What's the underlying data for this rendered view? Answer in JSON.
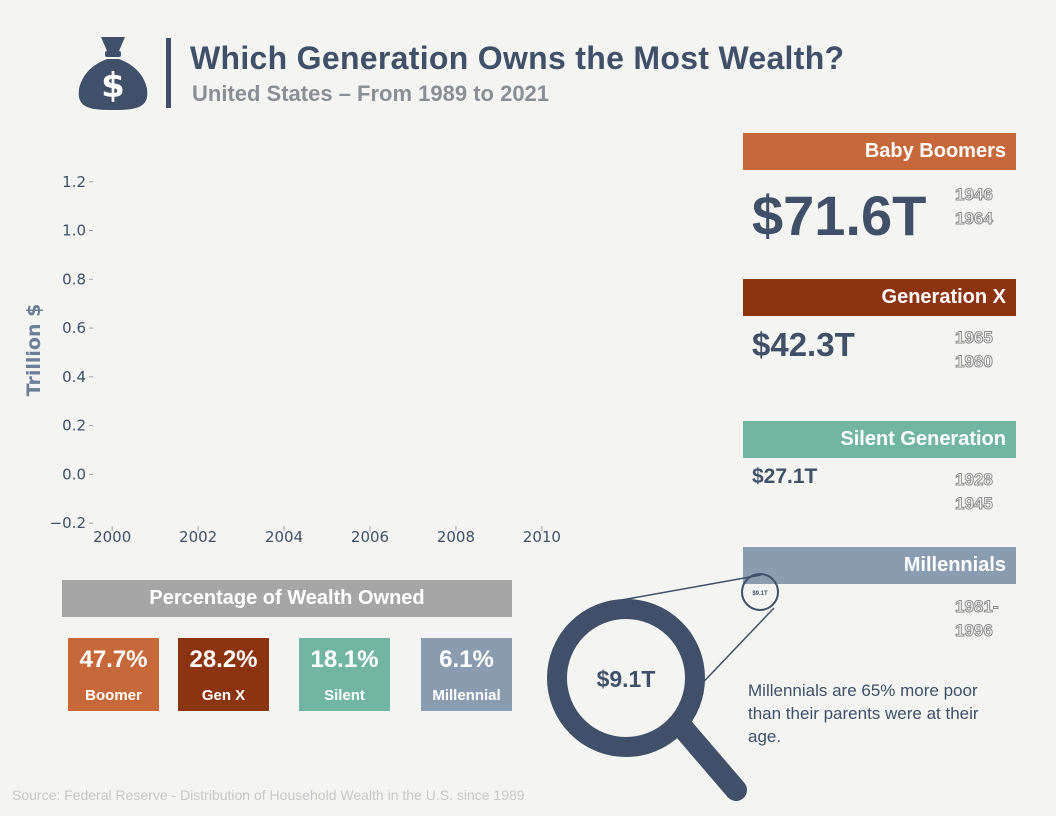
{
  "header": {
    "title": "Which Generation Owns the Most Wealth?",
    "subtitle": "United States – From 1989 to 2021",
    "icon": "money-bag-icon"
  },
  "chart_data": {
    "type": "line",
    "title": "",
    "xlabel": "",
    "ylabel": "Trillion $",
    "x_ticks": [
      "2000",
      "2002",
      "2004",
      "2006",
      "2008",
      "2010"
    ],
    "y_ticks": [
      "−0.2",
      "0.0",
      "0.2",
      "0.4",
      "0.6",
      "0.8",
      "1.0",
      "1.2"
    ],
    "xlim": [
      1999.6,
      2012.4
    ],
    "ylim": [
      -0.22,
      1.24
    ],
    "series": []
  },
  "generations": [
    {
      "name": "Baby Boomers",
      "value": "$71.6T",
      "years": [
        "1946",
        "1964"
      ],
      "color": "#c7683a"
    },
    {
      "name": "Generation X",
      "value": "$42.3T",
      "years": [
        "1965",
        "1980"
      ],
      "color": "#8c3310"
    },
    {
      "name": "Silent Generation",
      "value": "$27.1T",
      "years": [
        "1928",
        "1945"
      ],
      "color": "#72b5a2"
    },
    {
      "name": "Millennials",
      "value": "$9.1T",
      "years": [
        "1981-",
        "1996"
      ],
      "color": "#8a9db0"
    }
  ],
  "percentages": {
    "title": "Percentage of Wealth Owned",
    "items": [
      {
        "value": "47.7%",
        "label": "Boomer",
        "color": "#c7683a"
      },
      {
        "value": "28.2%",
        "label": "Gen X",
        "color": "#8c3310"
      },
      {
        "value": "18.1%",
        "label": "Silent",
        "color": "#72b5a2"
      },
      {
        "value": "6.1%",
        "label": "Millennial",
        "color": "#8a9db0"
      }
    ]
  },
  "magnifier": {
    "small_label": "$9.1T",
    "big_label": "$9.1T",
    "icon": "magnifying-glass-icon"
  },
  "note": "Millennials are 65% more poor than their parents were at their age.",
  "source": "Source: Federal Reserve - Distribution of Household Wealth in the U.S. since 1989"
}
